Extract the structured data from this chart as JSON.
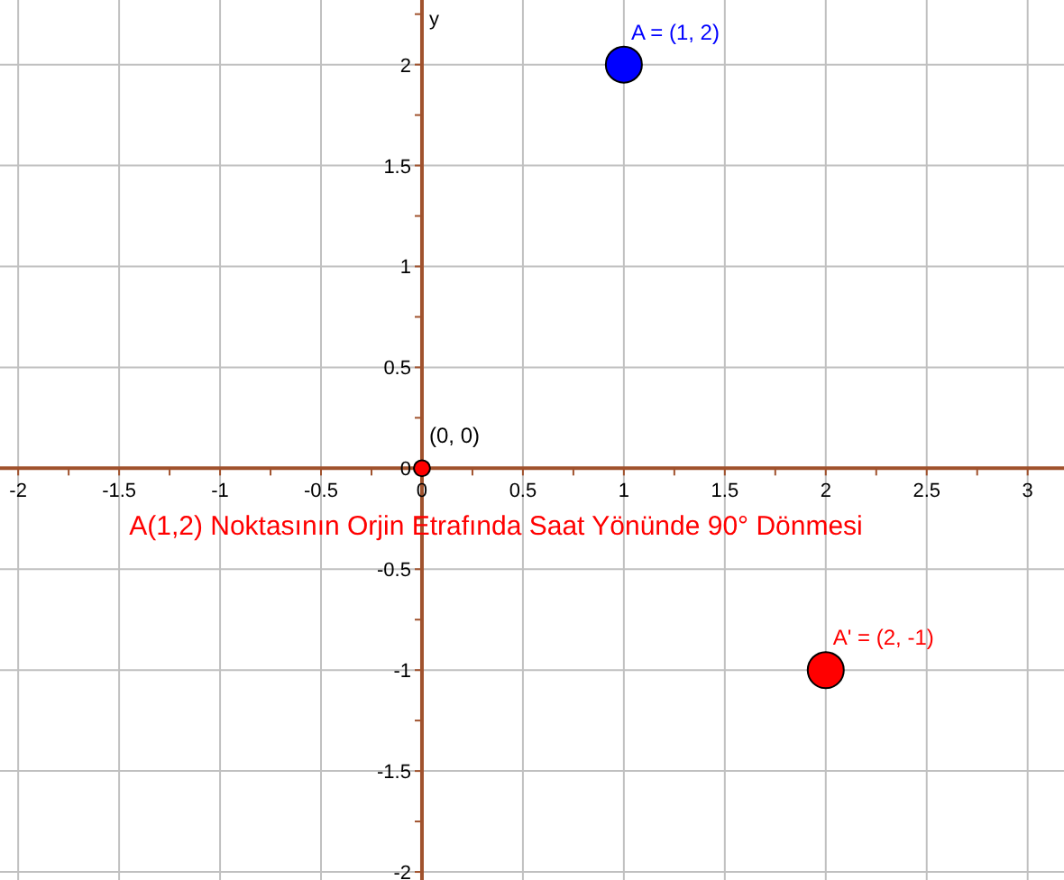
{
  "chart_data": {
    "type": "bubble",
    "title": "A(1,2) Noktasının Orjin Etrafında Saat Yönünde 90° Dönmesi",
    "ylabel": "y",
    "xlim": [
      -2.09,
      3.18
    ],
    "ylim": [
      -2.04,
      2.32
    ],
    "xticks": [
      -2,
      -1.5,
      -1,
      -0.5,
      0,
      0.5,
      1,
      1.5,
      2,
      2.5,
      3
    ],
    "yticks": [
      -2,
      -1.5,
      -1,
      -0.5,
      0,
      0.5,
      1,
      1.5,
      2
    ],
    "grid": true,
    "series": [
      {
        "color": "#0000ff",
        "x": [
          1
        ],
        "values": [
          2
        ],
        "sizes": [
          1
        ]
      },
      {
        "color": "#ff0000",
        "x": [
          2
        ],
        "values": [
          -1
        ],
        "sizes": [
          1
        ]
      },
      {
        "color": "#ff0000",
        "x": [
          0
        ],
        "values": [
          0
        ],
        "sizes": [
          0.2
        ]
      }
    ],
    "annotations": [
      {
        "text": "A = (1, 2)",
        "x": 1,
        "y": 2
      },
      {
        "text": "A' = (2, -1)",
        "x": 2,
        "y": -1
      },
      {
        "text": "(0, 0)",
        "x": 0,
        "y": 0
      }
    ]
  }
}
